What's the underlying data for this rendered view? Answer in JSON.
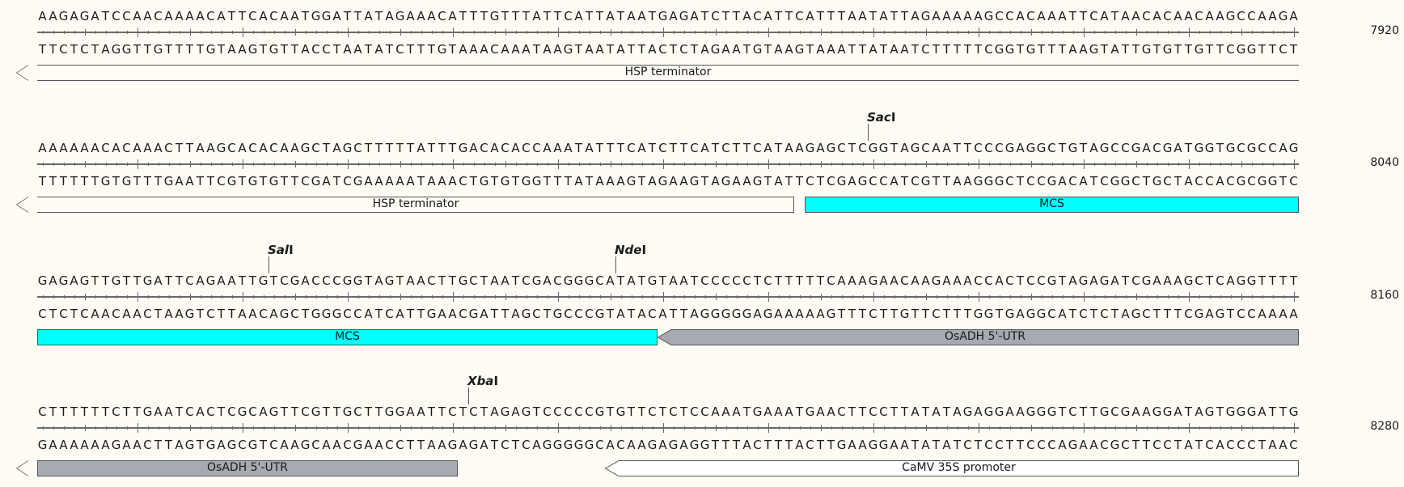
{
  "colors": {
    "background": "#fffcf5",
    "mcs": "#00ffff",
    "utr": "#a6aab1",
    "promoter": "#ffffff",
    "terminator": "#ffffff",
    "outline": "#555555"
  },
  "rows": [
    {
      "top": "AAGAGATCCAACAAAACATTCACAATGGATTATAGAAACATTTGTTTATTCATTATAATGAGATCTTACATTCATTTAATATTAGAAAAAGCCACAAATTCATAACACAACAAGCCAAGA",
      "bottom": "TTCTCTAGGTTGTTTTGTAAGTGTTACCTAATATCTTTGTAAACAAATAAGTAATATTACTCTAGAATGTAAGTAAATTATAATCTTTTTCGGTGTTTAAGTATTGTGTTGTTCGGTTCT",
      "end_position": "7920",
      "features": [
        {
          "label": "HSP terminator",
          "start": 7801,
          "end": 7920,
          "color": "#ffffff",
          "arrow": "continued-left"
        }
      ],
      "enzymes": []
    },
    {
      "top": "AAAAAACACAAACTTAAGCACACAAGCTAGCTTTTTATTTGACACACCAAATATTTCATCTTCATCTTCATAAGAGCTCGGTAGCAATTCCCGAGGCTGTAGCCGACGATGGTGCGCCAG",
      "bottom": "TTTTTTGTGTTTGAATTCGTGTGTTCGATCGAAAAATAAACTGTGTGGTTTATAAAGTAGAAGTAGAAGTATTCTCGAGCCATCGTTAAGGGCTCCGACATCGGCTGCTACCACGCGGTC",
      "end_position": "8040",
      "features": [
        {
          "label": "HSP terminator",
          "start": 7921,
          "end": 7992,
          "color": "#ffffff",
          "arrow": "continued-left"
        },
        {
          "label": "MCS",
          "start": 7994,
          "end": 8040,
          "color": "#00ffff",
          "arrow": "none"
        }
      ],
      "enzymes": [
        {
          "name_italic": "Sac",
          "name_suffix": "I",
          "cut_after": 7999
        }
      ]
    },
    {
      "top": "GAGAGTTGTTGATTCAGAATTGTCGACCCGGTAGTAACTTGCTAATCGACGGGCATATGTAATCCCCCTCTTTTTCAAAGAACAAGAAACCACTCCGTAGAGATCGAAAGCTCAGGTTTT",
      "bottom": "CTCTCAACAACTAAGTCTTAACAGCTGGGCCATCATTGAACGATTAGCTGCCCGTATACATTAGGGGGAGAAAAAGTTTCTTGTTCTTTGGTGAGGCATCTCTAGCTTTCGAGTCCAAAA",
      "end_position": "8160",
      "features": [
        {
          "label": "MCS",
          "start": 8041,
          "end": 8099,
          "color": "#00ffff",
          "arrow": "none"
        },
        {
          "label": "OsADH 5'-UTR",
          "start": 8100,
          "end": 8160,
          "color": "#a6aab1",
          "arrow": "tip-left"
        }
      ],
      "enzymes": [
        {
          "name_italic": "Sal",
          "name_suffix": "I",
          "cut_after": 8062
        },
        {
          "name_italic": "Nde",
          "name_suffix": "I",
          "cut_after": 8095
        }
      ]
    },
    {
      "top": "CTTTTTTCTTGAATCACTCGCAGTTCGTTGCTTGGAATTCTCTAGAGTCCCCCGTGTTCTCTCCAAATGAAATGAACTTCCTTATATAGAGGAAGGGTCTTGCGAAGGATAGTGGGATTG",
      "bottom": "GAAAAAAGAACTTAGTGAGCGTCAAGCAACGAACCTTAAGAGATCTCAGGGGGCACAAGAGAGGTTTACTTTACTTGAAGGAATATATCTCCTTCCCAGAACGCTTCCTATCACCCTAAC",
      "end_position": "8280",
      "features": [
        {
          "label": "OsADH 5'-UTR",
          "start": 8161,
          "end": 8200,
          "color": "#a6aab1",
          "arrow": "continued-left"
        },
        {
          "label": "CaMV 35S promoter",
          "start": 8215,
          "end": 8280,
          "color": "#ffffff",
          "arrow": "tip-left"
        }
      ],
      "enzymes": [
        {
          "name_italic": "Xba",
          "name_suffix": "I",
          "cut_after": 8201
        }
      ]
    }
  ]
}
